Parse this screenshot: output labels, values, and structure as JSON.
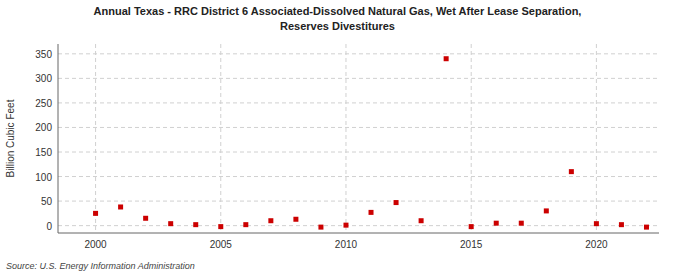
{
  "chart_data": {
    "type": "scatter",
    "title": "Annual Texas - RRC District 6 Associated-Dissolved Natural Gas, Wet After Lease Separation,",
    "subtitle": "Reserves Divestitures",
    "y_label": "Billion Cubic Feet",
    "source": "Source: U.S. Energy Information Administration",
    "x": [
      2000,
      2001,
      2002,
      2003,
      2004,
      2005,
      2006,
      2007,
      2008,
      2009,
      2010,
      2011,
      2012,
      2013,
      2014,
      2015,
      2016,
      2017,
      2018,
      2019,
      2020,
      2021,
      2022
    ],
    "values": [
      25,
      38,
      15,
      4,
      2,
      -2,
      2,
      10,
      13,
      -3,
      1,
      27,
      47,
      10,
      340,
      -2,
      5,
      5,
      30,
      110,
      4,
      2,
      -3
    ],
    "color": "#cc0000",
    "marker": "square",
    "xlim": [
      1998.5,
      2022.5
    ],
    "ylim": [
      -15,
      370
    ],
    "xticks": [
      2000,
      2005,
      2010,
      2015,
      2020
    ],
    "yticks": [
      0,
      50,
      100,
      150,
      200,
      250,
      300,
      350
    ],
    "grid": true
  }
}
